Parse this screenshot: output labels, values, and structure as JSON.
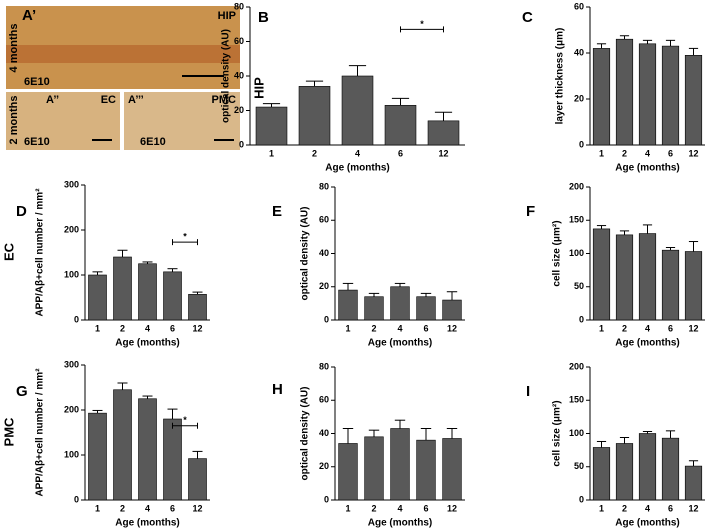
{
  "panel_a": {
    "top": {
      "label": "A’",
      "region": "HIP",
      "stain": "6E10"
    },
    "bottom_left": {
      "label": "A’’",
      "region": "EC",
      "stain": "6E10"
    },
    "bottom_right": {
      "label": "A’’’",
      "region": "PMC",
      "stain": "6E10"
    },
    "age_top": "4 months",
    "age_bottom": "2 months"
  },
  "row_labels": [
    "HIP",
    "EC",
    "PMC"
  ],
  "chart_data": [
    {
      "type": "bar",
      "panel": "B",
      "xlabel": "Age (months)",
      "ylabel": "optical density (AU)",
      "categories": [
        "1",
        "2",
        "4",
        "6",
        "12"
      ],
      "values": [
        22,
        34,
        40,
        23,
        14
      ],
      "errors": [
        2,
        3,
        6,
        4,
        5
      ],
      "ylim": [
        0,
        80
      ],
      "yticks": [
        0,
        20,
        40,
        60,
        80
      ],
      "color": "#595959",
      "annotations": [
        {
          "text": "*",
          "between": [
            "6",
            "12"
          ],
          "y": 67
        }
      ]
    },
    {
      "type": "bar",
      "panel": "C",
      "xlabel": "Age (months)",
      "ylabel": "layer thickness (μm)",
      "categories": [
        "1",
        "2",
        "4",
        "6",
        "12"
      ],
      "values": [
        42,
        46,
        44,
        43,
        39
      ],
      "errors": [
        2,
        1.5,
        1.5,
        2.5,
        3
      ],
      "ylim": [
        0,
        60
      ],
      "yticks": [
        0,
        20,
        40,
        60
      ],
      "color": "#595959"
    },
    {
      "type": "bar",
      "panel": "D",
      "xlabel": "Age (months)",
      "ylabel": "APP/Aβ+cell number / mm²",
      "categories": [
        "1",
        "2",
        "4",
        "6",
        "12"
      ],
      "values": [
        100,
        140,
        125,
        107,
        57
      ],
      "errors": [
        7,
        15,
        4,
        7,
        5
      ],
      "ylim": [
        0,
        300
      ],
      "yticks": [
        0,
        100,
        200,
        300
      ],
      "color": "#595959",
      "annotations": [
        {
          "text": "*",
          "between": [
            "6",
            "12"
          ],
          "y": 173
        }
      ]
    },
    {
      "type": "bar",
      "panel": "E",
      "xlabel": "Age (months)",
      "ylabel": "optical density (AU)",
      "categories": [
        "1",
        "2",
        "4",
        "6",
        "12"
      ],
      "values": [
        18,
        14,
        20,
        14,
        12
      ],
      "errors": [
        4,
        2,
        2,
        2,
        5
      ],
      "ylim": [
        0,
        80
      ],
      "yticks": [
        0,
        20,
        40,
        60,
        80
      ],
      "color": "#595959"
    },
    {
      "type": "bar",
      "panel": "F",
      "xlabel": "Age (months)",
      "ylabel": "cell size (μm²)",
      "categories": [
        "1",
        "2",
        "4",
        "6",
        "12"
      ],
      "values": [
        137,
        128,
        130,
        105,
        103
      ],
      "errors": [
        5,
        6,
        13,
        4,
        15
      ],
      "ylim": [
        0,
        200
      ],
      "yticks": [
        0,
        50,
        100,
        150,
        200
      ],
      "color": "#595959"
    },
    {
      "type": "bar",
      "panel": "G",
      "xlabel": "Age (months)",
      "ylabel": "APP/Aβ+cell number / mm²",
      "categories": [
        "1",
        "2",
        "4",
        "6",
        "12"
      ],
      "values": [
        193,
        245,
        225,
        180,
        92
      ],
      "errors": [
        6,
        15,
        6,
        22,
        16
      ],
      "ylim": [
        0,
        300
      ],
      "yticks": [
        0,
        100,
        200,
        300
      ],
      "color": "#595959",
      "annotations": [
        {
          "text": "*",
          "between": [
            "6",
            "12"
          ],
          "y": 165
        }
      ]
    },
    {
      "type": "bar",
      "panel": "H",
      "xlabel": "Age (months)",
      "ylabel": "optical density (AU)",
      "categories": [
        "1",
        "2",
        "4",
        "6",
        "12"
      ],
      "values": [
        34,
        38,
        43,
        36,
        37
      ],
      "errors": [
        9,
        4,
        5,
        7,
        6
      ],
      "ylim": [
        0,
        80
      ],
      "yticks": [
        0,
        20,
        40,
        60,
        80
      ],
      "color": "#595959"
    },
    {
      "type": "bar",
      "panel": "I",
      "xlabel": "Age (months)",
      "ylabel": "cell size (μm²)",
      "categories": [
        "1",
        "2",
        "4",
        "6",
        "12"
      ],
      "values": [
        79,
        85,
        100,
        93,
        51
      ],
      "errors": [
        9,
        9,
        3,
        11,
        8
      ],
      "ylim": [
        0,
        200
      ],
      "yticks": [
        0,
        50,
        100,
        150,
        200
      ],
      "color": "#595959"
    }
  ]
}
